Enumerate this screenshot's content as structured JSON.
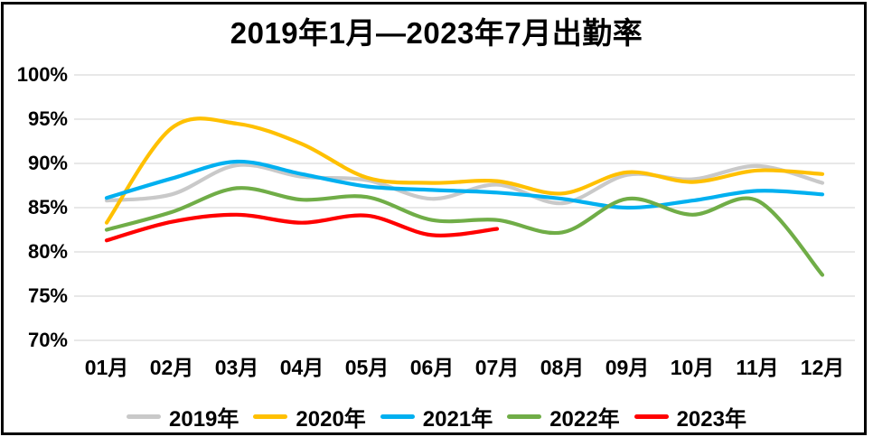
{
  "title": "2019年1月—2023年7月出勤率",
  "chart_data": {
    "type": "line",
    "title": "2019年1月—2023年7月出勤率",
    "categories": [
      "01月",
      "02月",
      "03月",
      "04月",
      "05月",
      "06月",
      "07月",
      "08月",
      "09月",
      "10月",
      "11月",
      "12月"
    ],
    "series": [
      {
        "name": "2019年",
        "color": "#C9C9C9",
        "values": [
          85.8,
          86.5,
          89.8,
          88.5,
          88.1,
          86.0,
          87.6,
          85.5,
          88.7,
          88.2,
          89.7,
          87.8
        ]
      },
      {
        "name": "2020年",
        "color": "#FFC000",
        "values": [
          83.3,
          94.0,
          94.5,
          92.2,
          88.4,
          87.8,
          88.0,
          86.6,
          89.0,
          87.9,
          89.2,
          88.8
        ]
      },
      {
        "name": "2021年",
        "color": "#00B0F0",
        "values": [
          86.1,
          88.3,
          90.2,
          88.8,
          87.4,
          87.0,
          86.7,
          86.0,
          85.0,
          85.8,
          86.9,
          86.5
        ]
      },
      {
        "name": "2022年",
        "color": "#70AD47",
        "values": [
          82.5,
          84.5,
          87.2,
          85.9,
          86.2,
          83.6,
          83.6,
          82.2,
          86.0,
          84.2,
          85.8,
          77.4
        ]
      },
      {
        "name": "2023年",
        "color": "#FF0000",
        "values": [
          81.3,
          83.4,
          84.2,
          83.3,
          84.1,
          81.9,
          82.6
        ]
      }
    ],
    "y_ticks": [
      "100%",
      "95%",
      "90%",
      "85%",
      "80%",
      "75%",
      "70%"
    ],
    "y_tick_values": [
      100,
      95,
      90,
      85,
      80,
      75,
      70
    ],
    "ylim": [
      70,
      100
    ],
    "xlabel": "",
    "ylabel": "",
    "grid": "horizontal",
    "gridline_color": "#D9D9D9",
    "legend_position": "bottom",
    "line_style": "smooth"
  }
}
